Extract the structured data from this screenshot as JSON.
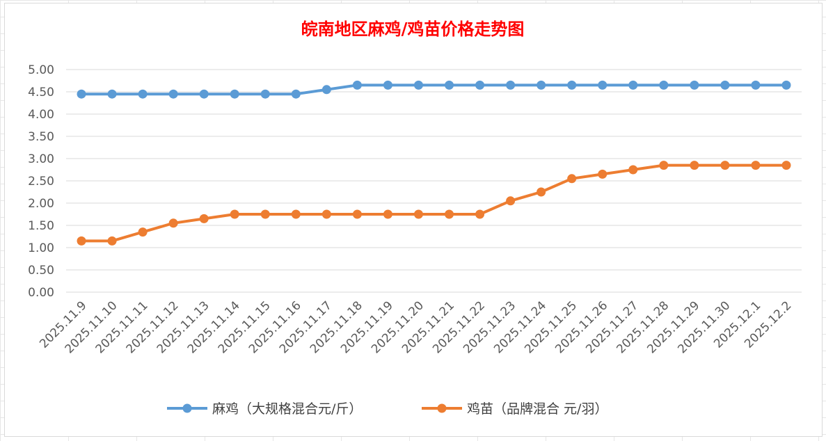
{
  "chart_data": {
    "type": "line",
    "title": "皖南地区麻鸡/鸡苗价格走势图",
    "xlabel": "",
    "ylabel": "",
    "ylim": [
      0,
      5
    ],
    "yticks": [
      "0.00",
      "0.50",
      "1.00",
      "1.50",
      "2.00",
      "2.50",
      "3.00",
      "3.50",
      "4.00",
      "4.50",
      "5.00"
    ],
    "grid": true,
    "legend_position": "bottom",
    "categories": [
      "2025.11.9",
      "2025.11.10",
      "2025.11.11",
      "2025.11.12",
      "2025.11.13",
      "2025.11.14",
      "2025.11.15",
      "2025.11.16",
      "2025.11.17",
      "2025.11.18",
      "2025.11.19",
      "2025.11.20",
      "2025.11.21",
      "2025.11.22",
      "2025.11.23",
      "2025.11.24",
      "2025.11.25",
      "2025.11.26",
      "2025.11.27",
      "2025.11.28",
      "2025.11.29",
      "2025.11.30",
      "2025.12.1",
      "2025.12.2"
    ],
    "series": [
      {
        "name": "麻鸡（大规格混合元/斤）",
        "color": "#5b9bd5",
        "values": [
          4.45,
          4.45,
          4.45,
          4.45,
          4.45,
          4.45,
          4.45,
          4.45,
          4.55,
          4.65,
          4.65,
          4.65,
          4.65,
          4.65,
          4.65,
          4.65,
          4.65,
          4.65,
          4.65,
          4.65,
          4.65,
          4.65,
          4.65,
          4.65
        ]
      },
      {
        "name": "鸡苗（品牌混合 元/羽）",
        "color": "#ed7d31",
        "values": [
          1.15,
          1.15,
          1.35,
          1.55,
          1.65,
          1.75,
          1.75,
          1.75,
          1.75,
          1.75,
          1.75,
          1.75,
          1.75,
          1.75,
          2.05,
          2.25,
          2.55,
          2.65,
          2.75,
          2.85,
          2.85,
          2.85,
          2.85,
          2.85
        ]
      }
    ]
  }
}
